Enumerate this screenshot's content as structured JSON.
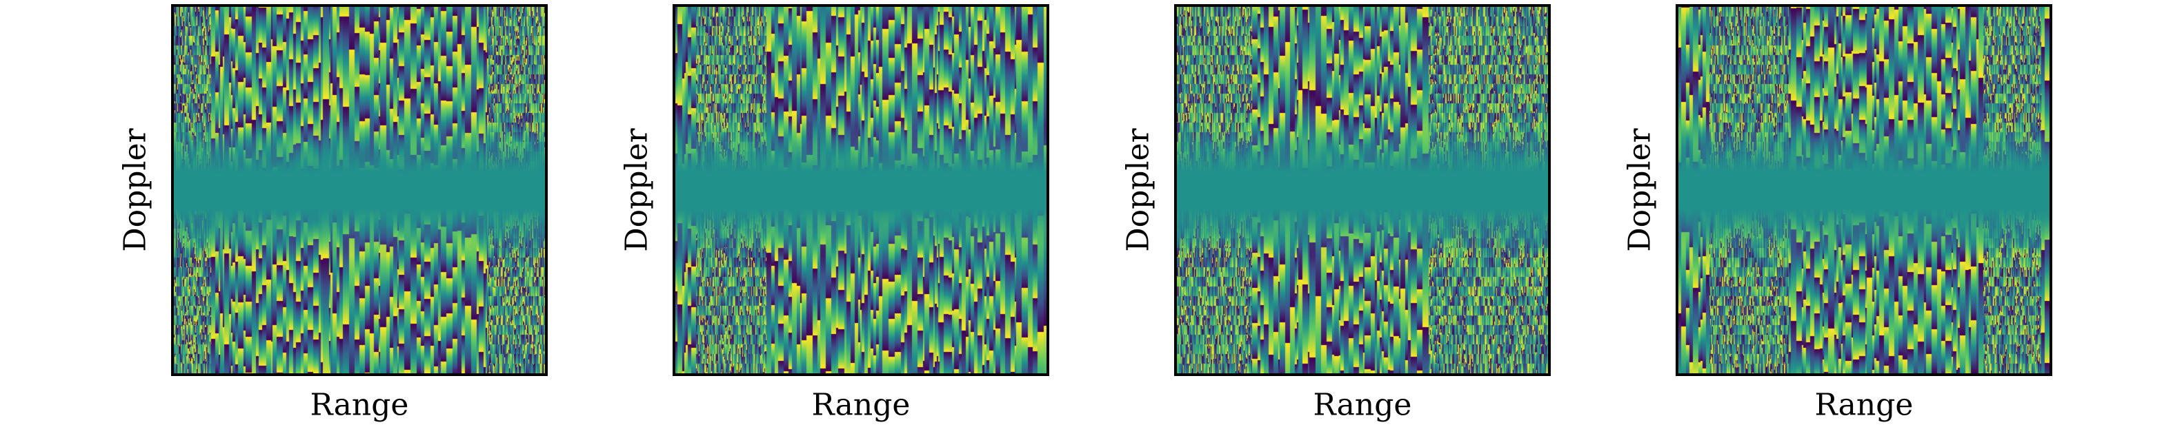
{
  "chart_data": [
    {
      "type": "heatmap",
      "xlabel": "Range",
      "ylabel": "Doppler",
      "colormap": "viridis",
      "colors": [
        "#440154",
        "#3b528b",
        "#21918c",
        "#5ec962",
        "#fde725"
      ],
      "xticks": false,
      "yticks": false,
      "grid": false,
      "noise_columns": [
        [
          0.0,
          0.1
        ],
        [
          0.85,
          1.0
        ]
      ],
      "seed": 11
    },
    {
      "type": "heatmap",
      "xlabel": "Range",
      "ylabel": "Doppler",
      "colormap": "viridis",
      "colors": [
        "#440154",
        "#3b528b",
        "#21918c",
        "#5ec962",
        "#fde725"
      ],
      "xticks": false,
      "yticks": false,
      "grid": false,
      "noise_columns": [
        [
          0.05,
          0.25
        ]
      ],
      "seed": 23
    },
    {
      "type": "heatmap",
      "xlabel": "Range",
      "ylabel": "Doppler",
      "colormap": "viridis",
      "colors": [
        "#440154",
        "#3b528b",
        "#21918c",
        "#5ec962",
        "#fde725"
      ],
      "xticks": false,
      "yticks": false,
      "grid": false,
      "noise_columns": [
        [
          0.0,
          0.2
        ],
        [
          0.68,
          1.0
        ]
      ],
      "seed": 37
    },
    {
      "type": "heatmap",
      "xlabel": "Range",
      "ylabel": "Doppler",
      "colormap": "viridis",
      "colors": [
        "#440154",
        "#3b528b",
        "#21918c",
        "#5ec962",
        "#fde725"
      ],
      "xticks": false,
      "yticks": false,
      "grid": false,
      "noise_columns": [
        [
          0.08,
          0.3
        ],
        [
          0.82,
          0.98
        ]
      ],
      "seed": 53
    }
  ]
}
